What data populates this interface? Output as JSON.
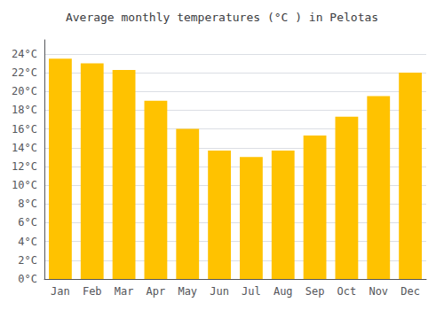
{
  "chart_data": {
    "type": "bar",
    "title": "Average monthly temperatures (°C ) in Pelotas",
    "categories": [
      "Jan",
      "Feb",
      "Mar",
      "Apr",
      "May",
      "Jun",
      "Jul",
      "Aug",
      "Sep",
      "Oct",
      "Nov",
      "Dec"
    ],
    "values": [
      23.5,
      23.0,
      22.3,
      19.0,
      16.0,
      13.7,
      13.0,
      13.7,
      15.3,
      17.3,
      19.5,
      22.0
    ],
    "color": "#FFC200",
    "ylim": [
      0,
      25.5
    ],
    "yticks": [
      {
        "value": 0,
        "label": "0°C"
      },
      {
        "value": 2,
        "label": "2°C"
      },
      {
        "value": 4,
        "label": "4°C"
      },
      {
        "value": 6,
        "label": "6°C"
      },
      {
        "value": 8,
        "label": "8°C"
      },
      {
        "value": 10,
        "label": "10°C"
      },
      {
        "value": 12,
        "label": "12°C"
      },
      {
        "value": 14,
        "label": "14°C"
      },
      {
        "value": 16,
        "label": "16°C"
      },
      {
        "value": 18,
        "label": "18°C"
      },
      {
        "value": 20,
        "label": "20°C"
      },
      {
        "value": 22,
        "label": "22°C"
      },
      {
        "value": 24,
        "label": "24°C"
      }
    ],
    "grid": true
  }
}
